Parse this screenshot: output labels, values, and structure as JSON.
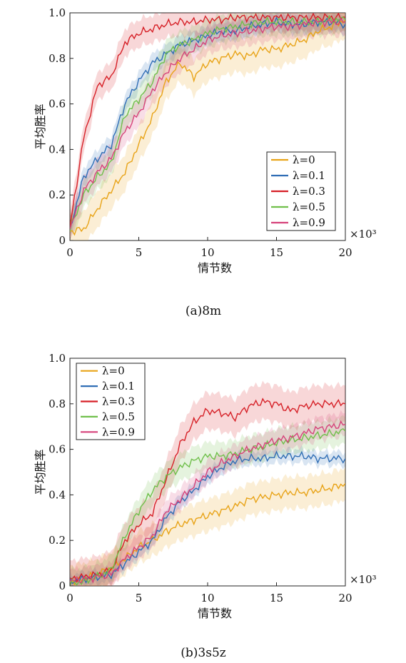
{
  "chart_data": [
    {
      "type": "line",
      "caption": "(a)8m",
      "xlabel": "情节数",
      "ylabel": "平均胜率",
      "x_multiplier": "×10³",
      "xlim": [
        0,
        20
      ],
      "ylim": [
        0,
        1.0
      ],
      "xticks": [
        "0",
        "5",
        "10",
        "15",
        "20"
      ],
      "yticks": [
        "0",
        "0.2",
        "0.4",
        "0.6",
        "0.8",
        "1.0"
      ],
      "legend_position": "lower-right",
      "x": [
        0,
        1,
        2,
        3,
        4,
        5,
        6,
        7,
        8,
        9,
        10,
        11,
        12,
        13,
        14,
        15,
        16,
        17,
        18,
        19,
        20
      ],
      "series": [
        {
          "name": "λ=0",
          "color": "#e8a317",
          "values": [
            0.04,
            0.05,
            0.14,
            0.22,
            0.3,
            0.42,
            0.54,
            0.7,
            0.78,
            0.72,
            0.78,
            0.8,
            0.82,
            0.81,
            0.84,
            0.84,
            0.86,
            0.88,
            0.92,
            0.94,
            0.97
          ],
          "band": 0.08
        },
        {
          "name": "λ=0.1",
          "color": "#2f6db5",
          "values": [
            0.05,
            0.28,
            0.36,
            0.42,
            0.6,
            0.7,
            0.78,
            0.82,
            0.86,
            0.88,
            0.9,
            0.92,
            0.92,
            0.94,
            0.95,
            0.96,
            0.95,
            0.95,
            0.96,
            0.96,
            0.95
          ],
          "band": 0.04
        },
        {
          "name": "λ=0.3",
          "color": "#d61f26",
          "values": [
            0.06,
            0.45,
            0.68,
            0.72,
            0.87,
            0.91,
            0.93,
            0.95,
            0.96,
            0.96,
            0.97,
            0.97,
            0.98,
            0.98,
            0.98,
            0.98,
            0.98,
            0.98,
            0.98,
            0.98,
            0.98
          ],
          "band": 0.06
        },
        {
          "name": "λ=0.5",
          "color": "#6fbf4a",
          "values": [
            0.05,
            0.2,
            0.28,
            0.34,
            0.55,
            0.62,
            0.7,
            0.82,
            0.86,
            0.88,
            0.91,
            0.93,
            0.94,
            0.95,
            0.96,
            0.96,
            0.96,
            0.96,
            0.96,
            0.97,
            0.97
          ],
          "band": 0.06
        },
        {
          "name": "λ=0.9",
          "color": "#d6427a",
          "values": [
            0.05,
            0.22,
            0.3,
            0.36,
            0.48,
            0.56,
            0.66,
            0.74,
            0.8,
            0.84,
            0.88,
            0.9,
            0.91,
            0.92,
            0.93,
            0.94,
            0.94,
            0.95,
            0.96,
            0.96,
            0.96
          ],
          "band": 0.06
        }
      ]
    },
    {
      "type": "line",
      "caption": "(b)3s5z",
      "xlabel": "情节数",
      "ylabel": "平均胜率",
      "x_multiplier": "×10³",
      "xlim": [
        0,
        20
      ],
      "ylim": [
        0,
        1.0
      ],
      "xticks": [
        "0",
        "5",
        "10",
        "15",
        "20"
      ],
      "yticks": [
        "0",
        "0.2",
        "0.4",
        "0.6",
        "0.8",
        "1.0"
      ],
      "legend_position": "upper-left",
      "x": [
        0,
        1,
        2,
        3,
        4,
        5,
        6,
        7,
        8,
        9,
        10,
        11,
        12,
        13,
        14,
        15,
        16,
        17,
        18,
        19,
        20
      ],
      "series": [
        {
          "name": "λ=0",
          "color": "#e8a317",
          "values": [
            0.02,
            0.03,
            0.05,
            0.08,
            0.12,
            0.17,
            0.2,
            0.24,
            0.27,
            0.29,
            0.31,
            0.33,
            0.35,
            0.38,
            0.39,
            0.4,
            0.41,
            0.41,
            0.42,
            0.43,
            0.45
          ],
          "band": 0.07
        },
        {
          "name": "λ=0.1",
          "color": "#2f6db5",
          "values": [
            0.02,
            0.03,
            0.04,
            0.05,
            0.1,
            0.15,
            0.2,
            0.3,
            0.37,
            0.42,
            0.48,
            0.52,
            0.55,
            0.56,
            0.56,
            0.57,
            0.57,
            0.57,
            0.56,
            0.56,
            0.56
          ],
          "band": 0.03
        },
        {
          "name": "λ=0.3",
          "color": "#d61f26",
          "values": [
            0.03,
            0.04,
            0.05,
            0.07,
            0.2,
            0.27,
            0.32,
            0.47,
            0.62,
            0.72,
            0.77,
            0.76,
            0.74,
            0.79,
            0.81,
            0.8,
            0.77,
            0.79,
            0.8,
            0.8,
            0.8
          ],
          "band": 0.08
        },
        {
          "name": "λ=0.5",
          "color": "#6fbf4a",
          "values": [
            0.01,
            0.02,
            0.04,
            0.07,
            0.22,
            0.33,
            0.42,
            0.48,
            0.52,
            0.55,
            0.57,
            0.57,
            0.58,
            0.6,
            0.61,
            0.63,
            0.64,
            0.65,
            0.66,
            0.67,
            0.68
          ],
          "band": 0.06
        },
        {
          "name": "λ=0.9",
          "color": "#d6427a",
          "values": [
            0.02,
            0.03,
            0.04,
            0.05,
            0.12,
            0.17,
            0.22,
            0.33,
            0.38,
            0.44,
            0.5,
            0.54,
            0.57,
            0.6,
            0.62,
            0.64,
            0.65,
            0.67,
            0.69,
            0.7,
            0.71
          ],
          "band": 0.05
        }
      ]
    }
  ]
}
